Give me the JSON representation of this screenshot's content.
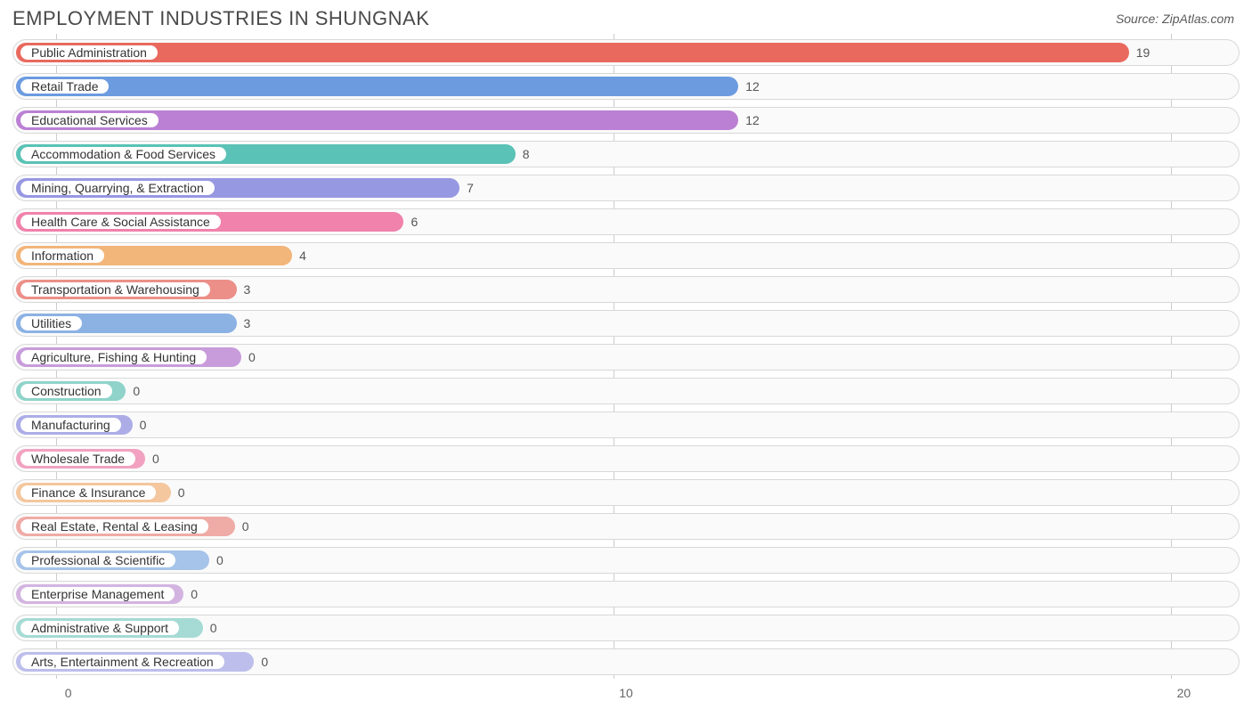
{
  "title": "EMPLOYMENT INDUSTRIES IN SHUNGNAK",
  "source": "Source: ZipAtlas.com",
  "chart": {
    "type": "bar-horizontal",
    "xlim": [
      -1,
      21
    ],
    "ticks": [
      0,
      10,
      20
    ],
    "grid_color": "#cccccc",
    "row_bg": "#fafafa",
    "row_border": "#d8d8d8",
    "label_color": "#555555",
    "pill_bg": "#ffffff",
    "bars": [
      {
        "label": "Public Administration",
        "value": 19,
        "color": "#e9695e"
      },
      {
        "label": "Retail Trade",
        "value": 12,
        "color": "#6c9be0"
      },
      {
        "label": "Educational Services",
        "value": 12,
        "color": "#bb80d4"
      },
      {
        "label": "Accommodation & Food Services",
        "value": 8,
        "color": "#5ac2b6"
      },
      {
        "label": "Mining, Quarrying, & Extraction",
        "value": 7,
        "color": "#9798e2"
      },
      {
        "label": "Health Care & Social Assistance",
        "value": 6,
        "color": "#f082ab"
      },
      {
        "label": "Information",
        "value": 4,
        "color": "#f2b57a"
      },
      {
        "label": "Transportation & Warehousing",
        "value": 3,
        "color": "#ec8f88"
      },
      {
        "label": "Utilities",
        "value": 3,
        "color": "#8cb2e4"
      },
      {
        "label": "Agriculture, Fishing & Hunting",
        "value": 0,
        "color": "#c89cdb"
      },
      {
        "label": "Construction",
        "value": 0,
        "color": "#8fd3ca"
      },
      {
        "label": "Manufacturing",
        "value": 0,
        "color": "#acade7"
      },
      {
        "label": "Wholesale Trade",
        "value": 0,
        "color": "#f2a2c0"
      },
      {
        "label": "Finance & Insurance",
        "value": 0,
        "color": "#f4c79e"
      },
      {
        "label": "Real Estate, Rental & Leasing",
        "value": 0,
        "color": "#efaba5"
      },
      {
        "label": "Professional & Scientific",
        "value": 0,
        "color": "#a6c3e9"
      },
      {
        "label": "Enterprise Management",
        "value": 0,
        "color": "#d3b4e1"
      },
      {
        "label": "Administrative & Support",
        "value": 0,
        "color": "#a5dbd4"
      },
      {
        "label": "Arts, Entertainment & Recreation",
        "value": 0,
        "color": "#bdbeeb"
      }
    ]
  }
}
